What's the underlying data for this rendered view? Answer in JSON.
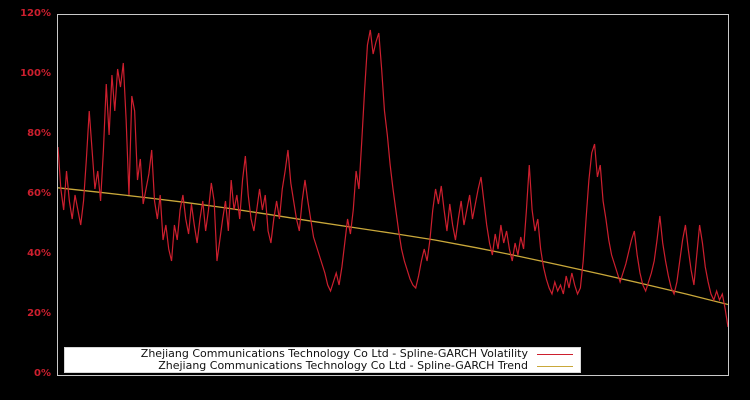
{
  "colors": {
    "background": "#000000",
    "axis_border": "#c9c9c9",
    "tick_label": "#cd1f2e",
    "volatility_line": "#cd1f2e",
    "trend_line": "#c9a83a",
    "legend_background": "#ffffff",
    "legend_text": "#111111"
  },
  "y_axis": {
    "ticks": [
      "0%",
      "20%",
      "40%",
      "60%",
      "80%",
      "100%",
      "120%"
    ],
    "tick_values": [
      0,
      20,
      40,
      60,
      80,
      100,
      120
    ]
  },
  "legend": {
    "items": [
      {
        "label": "Zhejiang Communications Technology Co Ltd - Spline-GARCH Volatility",
        "color": "#cd1f2e",
        "icon": "volatility-line-swatch"
      },
      {
        "label": "Zhejiang Communications Technology Co Ltd - Spline-GARCH Trend",
        "color": "#c9a83a",
        "icon": "trend-line-swatch"
      }
    ]
  },
  "chart_data": {
    "type": "line",
    "title": "",
    "xlabel": "",
    "ylabel": "",
    "ylim": [
      0,
      120
    ],
    "y_unit": "%",
    "grid": false,
    "legend_position": "lower-left",
    "x_axis_labels_visible": false,
    "series": [
      {
        "name": "Zhejiang Communications Technology Co Ltd - Spline-GARCH Volatility",
        "color": "#cd1f2e",
        "values": [
          76,
          62,
          55,
          68,
          58,
          52,
          60,
          55,
          50,
          58,
          72,
          88,
          75,
          62,
          68,
          58,
          75,
          97,
          80,
          100,
          88,
          102,
          96,
          104,
          85,
          60,
          93,
          88,
          65,
          72,
          57,
          62,
          67,
          75,
          58,
          52,
          60,
          45,
          50,
          42,
          38,
          50,
          45,
          55,
          60,
          52,
          47,
          57,
          50,
          44,
          52,
          58,
          48,
          55,
          64,
          58,
          38,
          45,
          52,
          58,
          48,
          65,
          55,
          60,
          52,
          65,
          73,
          60,
          52,
          48,
          55,
          62,
          55,
          60,
          48,
          44,
          52,
          58,
          52,
          62,
          68,
          75,
          64,
          58,
          52,
          48,
          58,
          65,
          58,
          52,
          46,
          43,
          40,
          37,
          34,
          30,
          28,
          31,
          34,
          30,
          36,
          44,
          52,
          47,
          55,
          68,
          62,
          78,
          95,
          110,
          115,
          107,
          111,
          114,
          102,
          88,
          80,
          70,
          62,
          55,
          48,
          42,
          38,
          35,
          32,
          30,
          29,
          33,
          38,
          42,
          38,
          45,
          55,
          62,
          57,
          63,
          55,
          48,
          57,
          50,
          45,
          52,
          58,
          50,
          55,
          60,
          52,
          57,
          62,
          66,
          58,
          50,
          44,
          40,
          47,
          42,
          50,
          44,
          48,
          42,
          38,
          44,
          40,
          46,
          42,
          55,
          70,
          55,
          48,
          52,
          42,
          36,
          32,
          29,
          27,
          31,
          28,
          30,
          27,
          33,
          29,
          34,
          30,
          27,
          29,
          38,
          52,
          65,
          74,
          77,
          66,
          70,
          58,
          52,
          45,
          40,
          37,
          34,
          31,
          34,
          37,
          41,
          45,
          48,
          40,
          34,
          30,
          28,
          31,
          34,
          38,
          45,
          53,
          44,
          38,
          33,
          29,
          27,
          31,
          38,
          45,
          50,
          42,
          35,
          30,
          40,
          50,
          44,
          36,
          31,
          27,
          25,
          28,
          25,
          27,
          22,
          16
        ]
      },
      {
        "name": "Zhejiang Communications Technology Co Ltd - Spline-GARCH Trend",
        "color": "#c9a83a",
        "values": [
          62.4,
          60.9,
          59.3,
          57.6,
          55.7,
          53.6,
          51.4,
          49.3,
          47.2,
          45.0,
          42.4,
          39.6,
          36.6,
          33.5,
          30.3,
          27.0,
          23.5
        ]
      }
    ]
  }
}
